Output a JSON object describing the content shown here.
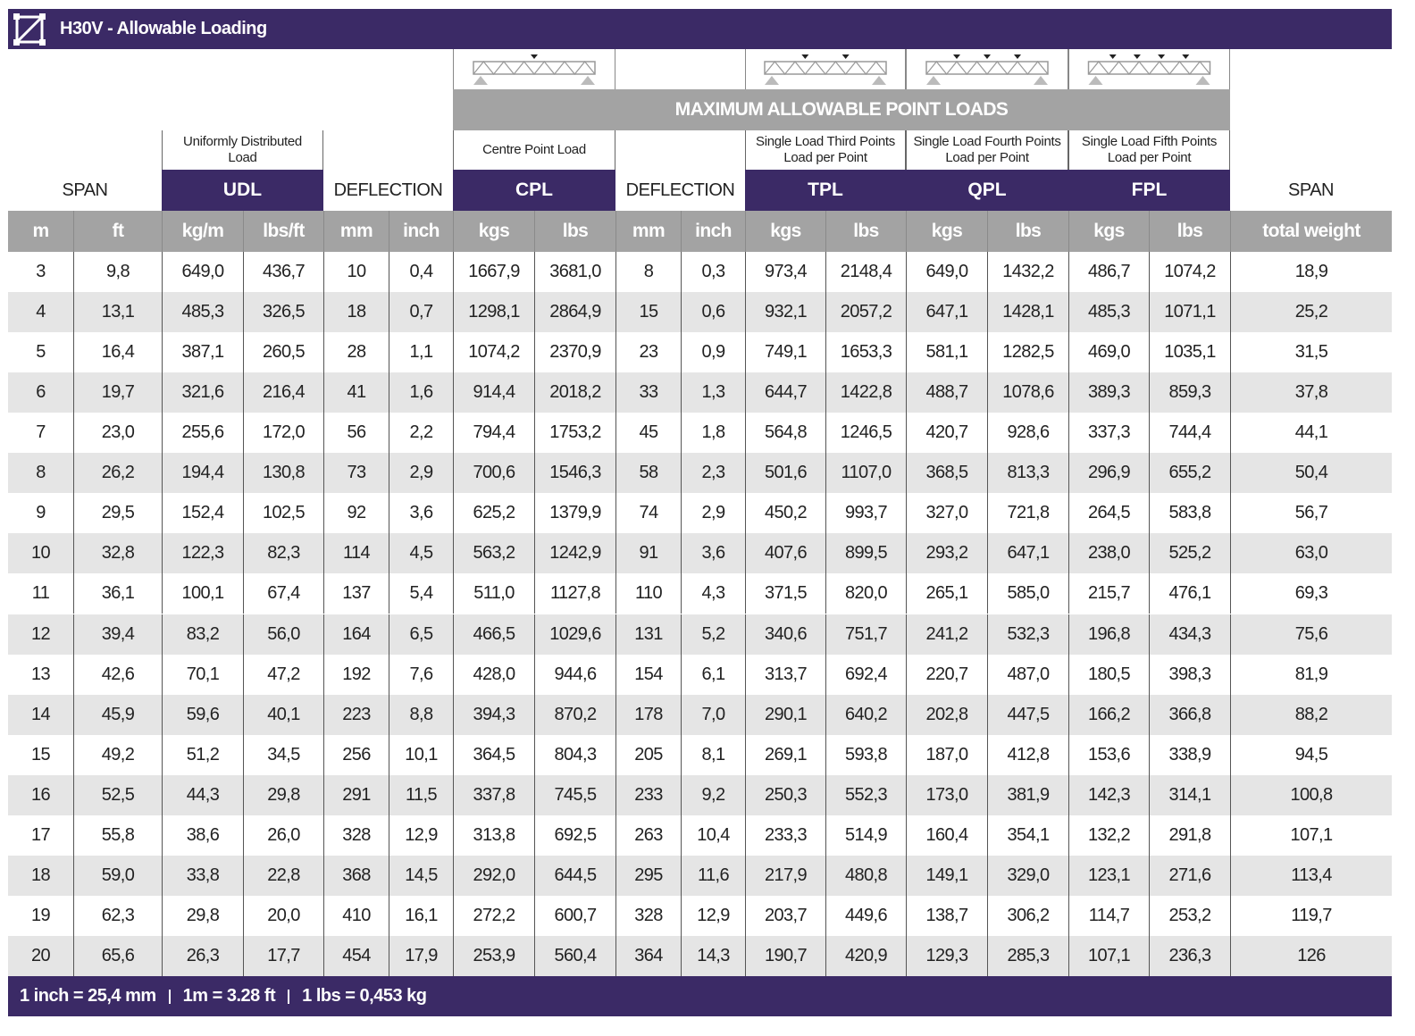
{
  "header": {
    "title": "H30V - Allowable Loading"
  },
  "group_header": "MAXIMUM ALLOWABLE POINT LOADS",
  "column_groups": [
    {
      "label": "SPAN"
    },
    {
      "description": [
        "Uniformly Distributed",
        "Load"
      ],
      "code": "UDL"
    },
    {
      "label": "DEFLECTION"
    },
    {
      "description": [
        "Centre Point Load"
      ],
      "code": "CPL"
    },
    {
      "label": "DEFLECTION"
    },
    {
      "description": [
        "Single Load Third Points",
        "Load per Point"
      ],
      "code": "TPL"
    },
    {
      "description": [
        "Single Load Fourth Points",
        "Load per Point"
      ],
      "code": "QPL"
    },
    {
      "description": [
        "Single Load Fifth Points",
        "Load per Point"
      ],
      "code": "FPL"
    },
    {
      "label": "SPAN"
    }
  ],
  "table": {
    "columns": [
      "m",
      "ft",
      "kg/m",
      "lbs/ft",
      "mm",
      "inch",
      "kgs",
      "lbs",
      "mm",
      "inch",
      "kgs",
      "lbs",
      "kgs",
      "lbs",
      "kgs",
      "lbs",
      "total weight"
    ],
    "rows": [
      [
        "3",
        "9,8",
        "649,0",
        "436,7",
        "10",
        "0,4",
        "1667,9",
        "3681,0",
        "8",
        "0,3",
        "973,4",
        "2148,4",
        "649,0",
        "1432,2",
        "486,7",
        "1074,2",
        "18,9"
      ],
      [
        "4",
        "13,1",
        "485,3",
        "326,5",
        "18",
        "0,7",
        "1298,1",
        "2864,9",
        "15",
        "0,6",
        "932,1",
        "2057,2",
        "647,1",
        "1428,1",
        "485,3",
        "1071,1",
        "25,2"
      ],
      [
        "5",
        "16,4",
        "387,1",
        "260,5",
        "28",
        "1,1",
        "1074,2",
        "2370,9",
        "23",
        "0,9",
        "749,1",
        "1653,3",
        "581,1",
        "1282,5",
        "469,0",
        "1035,1",
        "31,5"
      ],
      [
        "6",
        "19,7",
        "321,6",
        "216,4",
        "41",
        "1,6",
        "914,4",
        "2018,2",
        "33",
        "1,3",
        "644,7",
        "1422,8",
        "488,7",
        "1078,6",
        "389,3",
        "859,3",
        "37,8"
      ],
      [
        "7",
        "23,0",
        "255,6",
        "172,0",
        "56",
        "2,2",
        "794,4",
        "1753,2",
        "45",
        "1,8",
        "564,8",
        "1246,5",
        "420,7",
        "928,6",
        "337,3",
        "744,4",
        "44,1"
      ],
      [
        "8",
        "26,2",
        "194,4",
        "130,8",
        "73",
        "2,9",
        "700,6",
        "1546,3",
        "58",
        "2,3",
        "501,6",
        "1107,0",
        "368,5",
        "813,3",
        "296,9",
        "655,2",
        "50,4"
      ],
      [
        "9",
        "29,5",
        "152,4",
        "102,5",
        "92",
        "3,6",
        "625,2",
        "1379,9",
        "74",
        "2,9",
        "450,2",
        "993,7",
        "327,0",
        "721,8",
        "264,5",
        "583,8",
        "56,7"
      ],
      [
        "10",
        "32,8",
        "122,3",
        "82,3",
        "114",
        "4,5",
        "563,2",
        "1242,9",
        "91",
        "3,6",
        "407,6",
        "899,5",
        "293,2",
        "647,1",
        "238,0",
        "525,2",
        "63,0"
      ],
      [
        "11",
        "36,1",
        "100,1",
        "67,4",
        "137",
        "5,4",
        "511,0",
        "1127,8",
        "110",
        "4,3",
        "371,5",
        "820,0",
        "265,1",
        "585,0",
        "215,7",
        "476,1",
        "69,3"
      ],
      [
        "12",
        "39,4",
        "83,2",
        "56,0",
        "164",
        "6,5",
        "466,5",
        "1029,6",
        "131",
        "5,2",
        "340,6",
        "751,7",
        "241,2",
        "532,3",
        "196,8",
        "434,3",
        "75,6"
      ],
      [
        "13",
        "42,6",
        "70,1",
        "47,2",
        "192",
        "7,6",
        "428,0",
        "944,6",
        "154",
        "6,1",
        "313,7",
        "692,4",
        "220,7",
        "487,0",
        "180,5",
        "398,3",
        "81,9"
      ],
      [
        "14",
        "45,9",
        "59,6",
        "40,1",
        "223",
        "8,8",
        "394,3",
        "870,2",
        "178",
        "7,0",
        "290,1",
        "640,2",
        "202,8",
        "447,5",
        "166,2",
        "366,8",
        "88,2"
      ],
      [
        "15",
        "49,2",
        "51,2",
        "34,5",
        "256",
        "10,1",
        "364,5",
        "804,3",
        "205",
        "8,1",
        "269,1",
        "593,8",
        "187,0",
        "412,8",
        "153,6",
        "338,9",
        "94,5"
      ],
      [
        "16",
        "52,5",
        "44,3",
        "29,8",
        "291",
        "11,5",
        "337,8",
        "745,5",
        "233",
        "9,2",
        "250,3",
        "552,3",
        "173,0",
        "381,9",
        "142,3",
        "314,1",
        "100,8"
      ],
      [
        "17",
        "55,8",
        "38,6",
        "26,0",
        "328",
        "12,9",
        "313,8",
        "692,5",
        "263",
        "10,4",
        "233,3",
        "514,9",
        "160,4",
        "354,1",
        "132,2",
        "291,8",
        "107,1"
      ],
      [
        "18",
        "59,0",
        "33,8",
        "22,8",
        "368",
        "14,5",
        "292,0",
        "644,5",
        "295",
        "11,6",
        "217,9",
        "480,8",
        "149,1",
        "329,0",
        "123,1",
        "271,6",
        "113,4"
      ],
      [
        "19",
        "62,3",
        "29,8",
        "20,0",
        "410",
        "16,1",
        "272,2",
        "600,7",
        "328",
        "12,9",
        "203,7",
        "449,6",
        "138,7",
        "306,2",
        "114,7",
        "253,2",
        "119,7"
      ],
      [
        "20",
        "65,6",
        "26,3",
        "17,7",
        "454",
        "17,9",
        "253,9",
        "560,4",
        "364",
        "14,3",
        "190,7",
        "420,9",
        "129,3",
        "285,3",
        "107,1",
        "236,3",
        "126"
      ]
    ]
  },
  "footer": {
    "notes": [
      "1 inch = 25,4 mm",
      "1m = 3.28 ft",
      "1 lbs = 0,453 kg"
    ]
  }
}
